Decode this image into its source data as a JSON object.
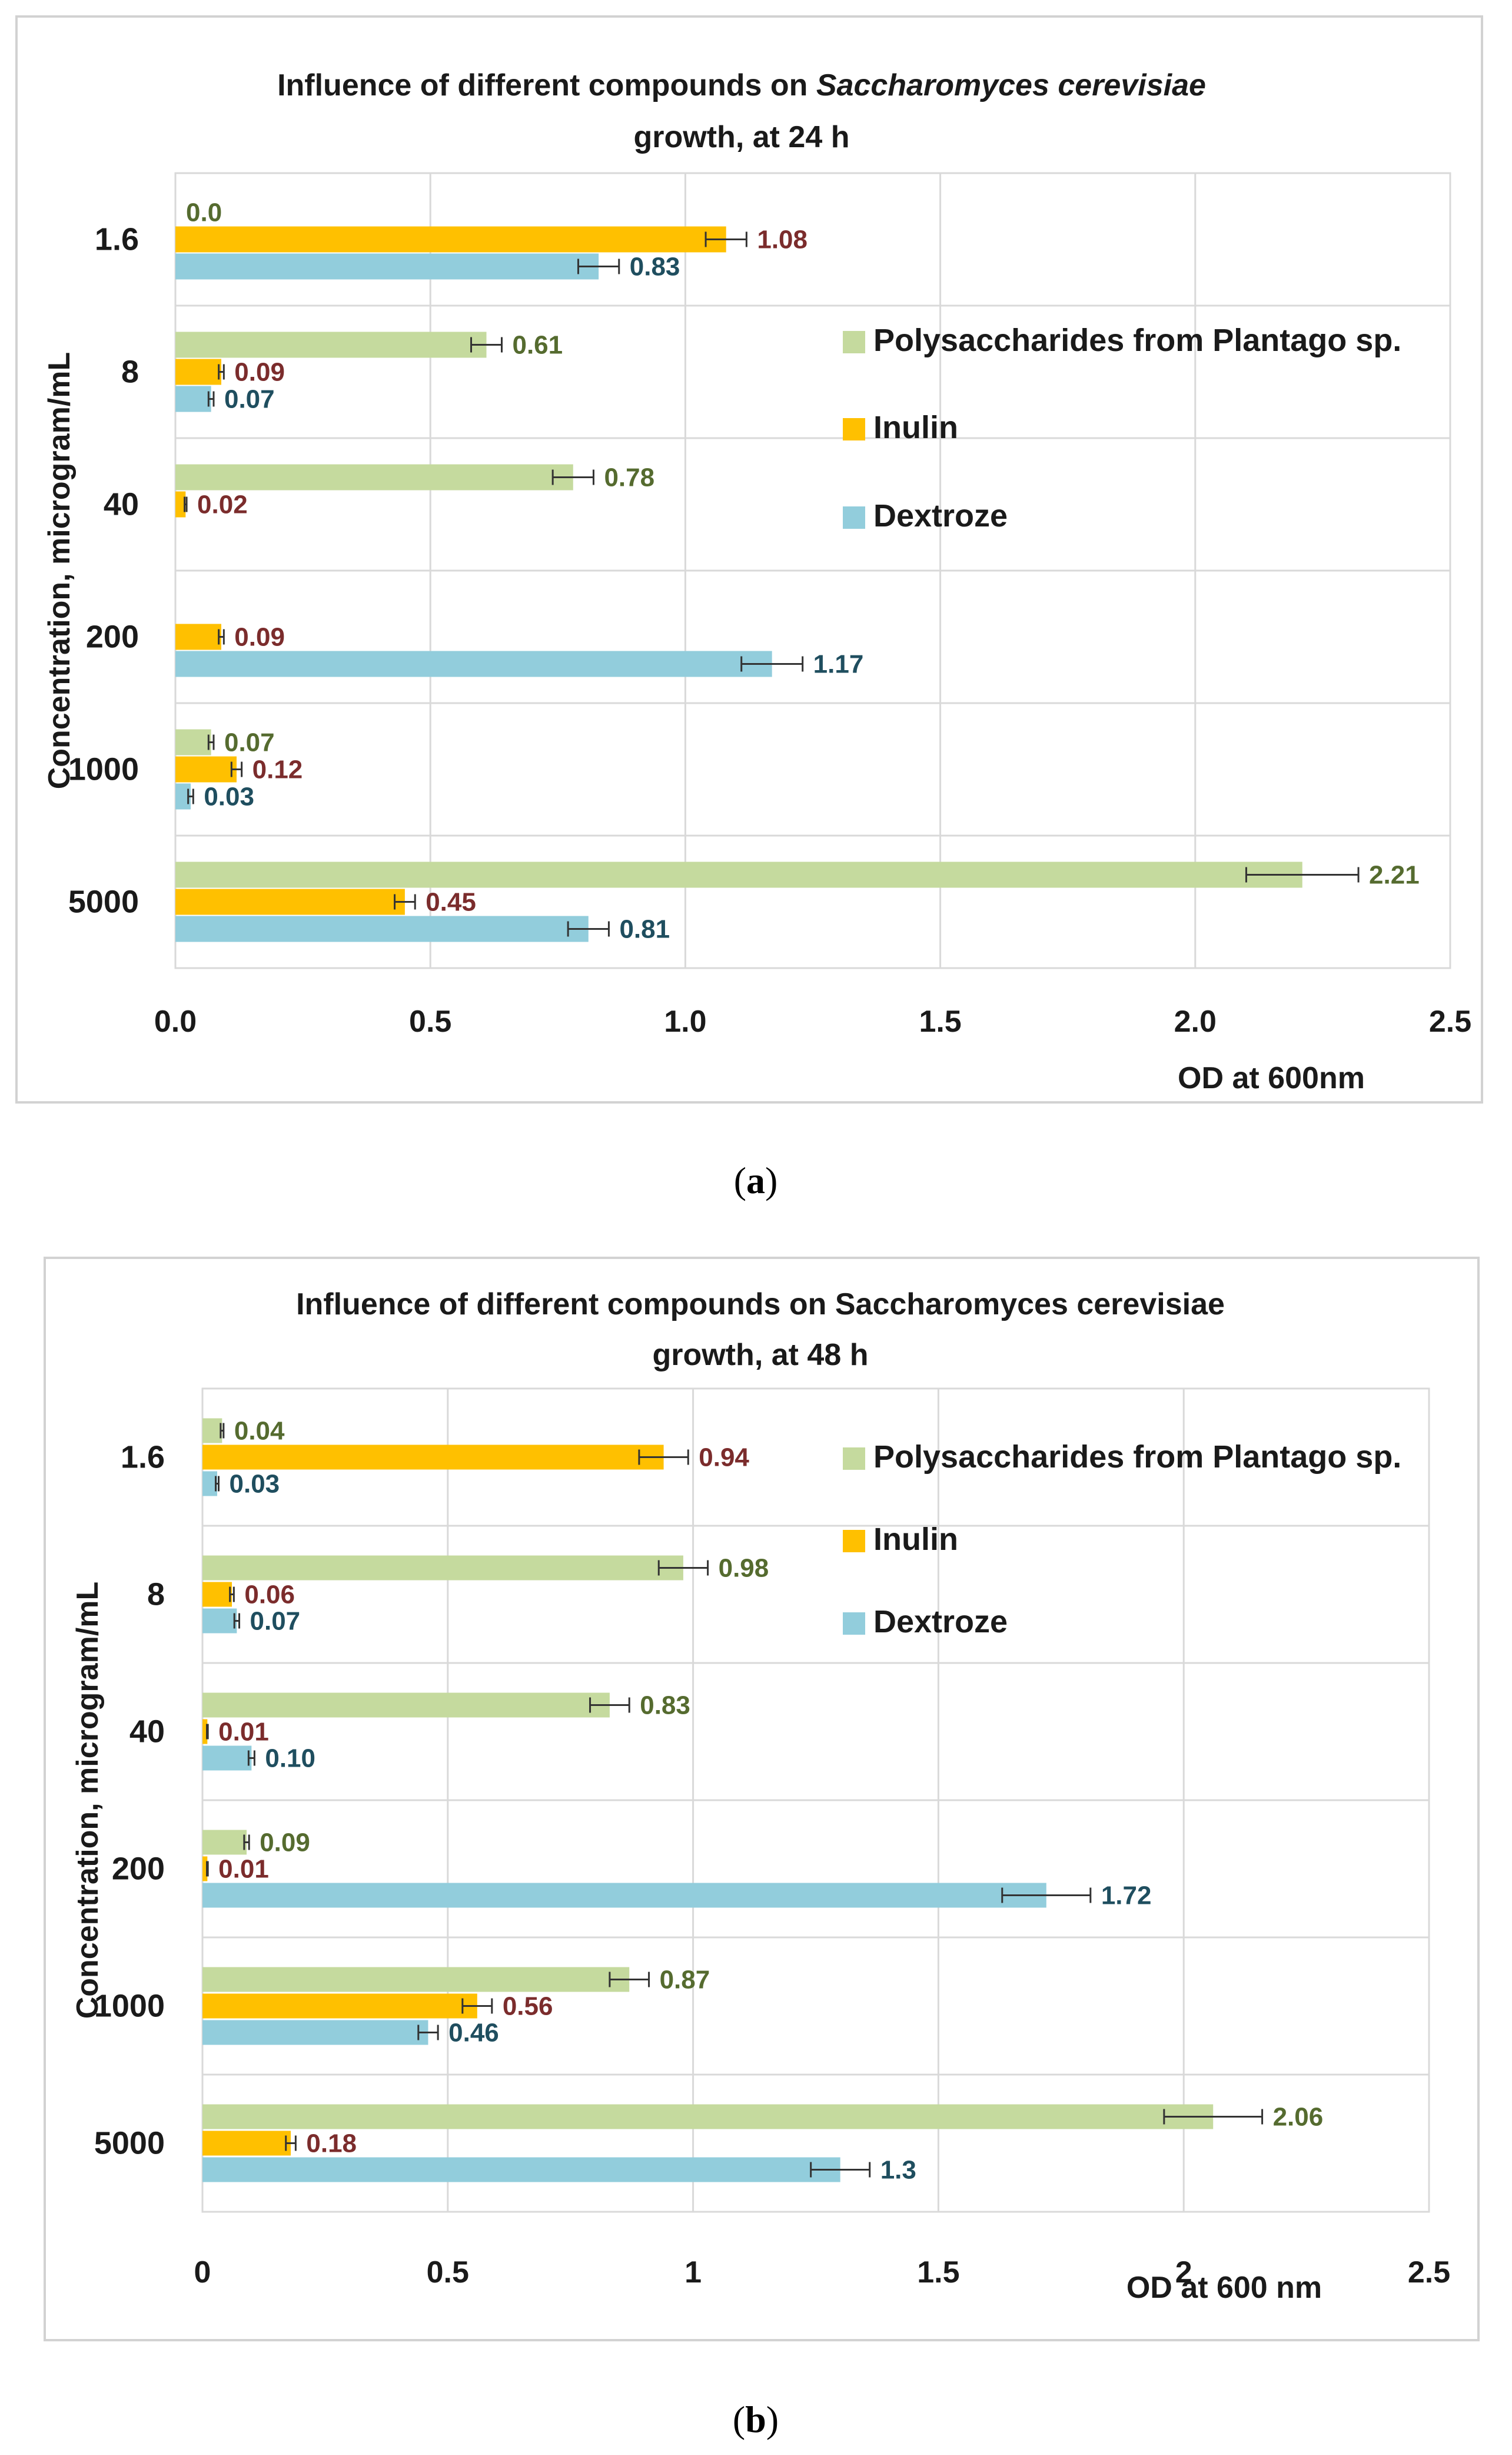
{
  "colors": {
    "polysaccharides": "#C5DA9E",
    "inulin": "#FFC000",
    "dextroze": "#92CDDC",
    "label_polysaccharides": "#556B2F",
    "label_inulin": "#7B2C2C",
    "label_dextroze": "#1F4E5F"
  },
  "chart_data": [
    {
      "type": "bar",
      "orientation": "horizontal",
      "panel_caption": "(a)",
      "title_line1_prefix": "Influence of different compounds on ",
      "title_line1_italic": "Saccharomyces cerevisiae",
      "title_line2": "growth, at 24 h",
      "xlabel": "OD at 600nm",
      "ylabel": "Concentration, microgram/mL",
      "xlim": [
        0,
        2.5
      ],
      "xticks": [
        "0.0",
        "0.5",
        "1.0",
        "1.5",
        "2.0",
        "2.5"
      ],
      "categories": [
        "1.6",
        "8",
        "40",
        "200",
        "1000",
        "5000"
      ],
      "series": [
        {
          "name": "Polysaccharides from Plantago sp.",
          "key": "polysaccharides",
          "values": [
            0.0,
            0.61,
            0.78,
            null,
            0.07,
            2.21
          ],
          "errors": [
            0,
            0.03,
            0.04,
            null,
            0.005,
            0.11
          ],
          "labels": [
            "0.0",
            "0.61",
            "0.78",
            "",
            "0.07",
            "2.21"
          ]
        },
        {
          "name": "Inulin",
          "key": "inulin",
          "values": [
            1.08,
            0.09,
            0.02,
            0.09,
            0.12,
            0.45
          ],
          "errors": [
            0.04,
            0.005,
            0.002,
            0.005,
            0.01,
            0.02
          ],
          "labels": [
            "1.08",
            "0.09",
            "0.02",
            "0.09",
            "0.12",
            "0.45"
          ]
        },
        {
          "name": "Dextroze",
          "key": "dextroze",
          "values": [
            0.83,
            0.07,
            null,
            1.17,
            0.03,
            0.81
          ],
          "errors": [
            0.04,
            0.005,
            null,
            0.06,
            0.005,
            0.04
          ],
          "labels": [
            "0.83",
            "0.07",
            "",
            "1.17",
            "0.03",
            "0.81"
          ]
        }
      ],
      "legend": [
        "Polysaccharides from Plantago sp.",
        "Inulin",
        "Dextroze"
      ]
    },
    {
      "type": "bar",
      "orientation": "horizontal",
      "panel_caption": "(b)",
      "title_line1_prefix": "Influence of different compounds on Saccharomyces cerevisiae",
      "title_line1_italic": "",
      "title_line2": "growth, at 48 h",
      "xlabel": "OD at 600 nm",
      "ylabel": "Concentration, microgram/mL",
      "xlim": [
        0,
        2.5
      ],
      "xticks": [
        "0",
        "0.5",
        "1",
        "1.5",
        "2",
        "2.5"
      ],
      "categories": [
        "1.6",
        "8",
        "40",
        "200",
        "1000",
        "5000"
      ],
      "series": [
        {
          "name": "Polysaccharides from Plantago sp.",
          "key": "polysaccharides",
          "values": [
            0.04,
            0.98,
            0.83,
            0.09,
            0.87,
            2.06
          ],
          "errors": [
            0.003,
            0.05,
            0.04,
            0.005,
            0.04,
            0.1
          ],
          "labels": [
            "0.04",
            "0.98",
            "0.83",
            "0.09",
            "0.87",
            "2.06"
          ]
        },
        {
          "name": "Inulin",
          "key": "inulin",
          "values": [
            0.94,
            0.06,
            0.01,
            0.01,
            0.56,
            0.18
          ],
          "errors": [
            0.05,
            0.004,
            0.001,
            0.001,
            0.03,
            0.01
          ],
          "labels": [
            "0.94",
            "0.06",
            "0.01",
            "0.01",
            "0.56",
            "0.18"
          ]
        },
        {
          "name": "Dextroze",
          "key": "dextroze",
          "values": [
            0.03,
            0.07,
            0.1,
            1.72,
            0.46,
            1.3
          ],
          "errors": [
            0.003,
            0.005,
            0.006,
            0.09,
            0.02,
            0.06
          ],
          "labels": [
            "0.03",
            "0.07",
            "0.10",
            "1.72",
            "0.46",
            "1.3"
          ]
        }
      ],
      "legend": [
        "Polysaccharides from Plantago sp.",
        "Inulin",
        "Dextroze"
      ]
    }
  ]
}
